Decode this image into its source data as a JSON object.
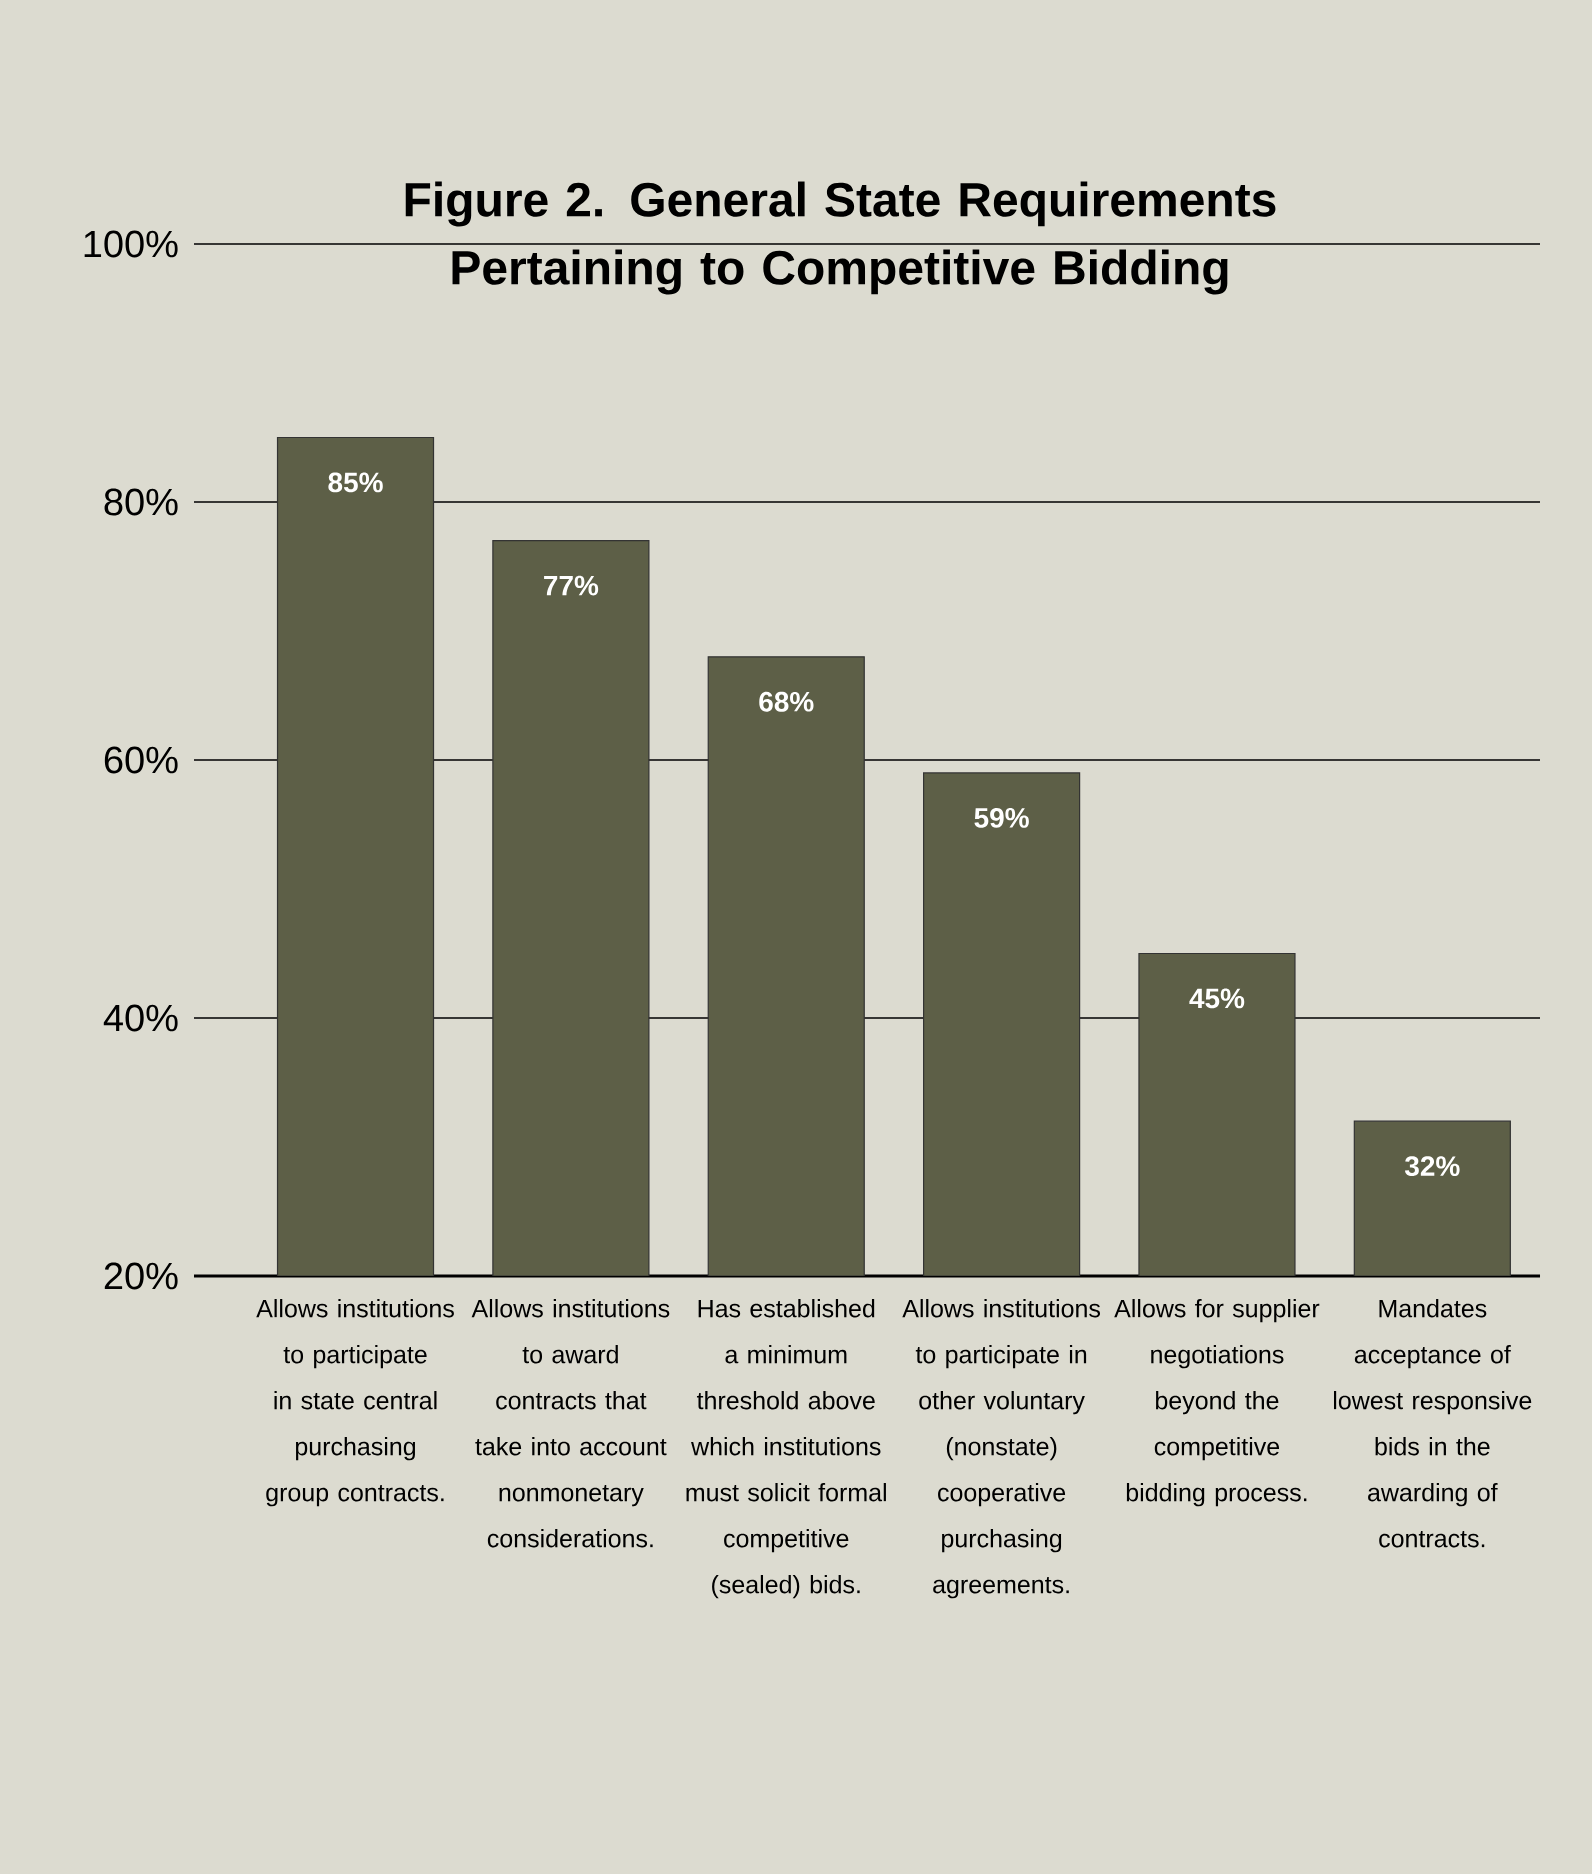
{
  "chart_data": {
    "type": "bar",
    "title": "Figure 2. General State Requirements Pertaining to Competitive Bidding",
    "categories": [
      "Allows institutions to participate in state central purchasing group contracts.",
      "Allows institutions to award contracts that take into account nonmonetary considerations.",
      "Has established a minimum threshold above which institutions must solicit formal competitive (sealed) bids.",
      "Allows institutions to participate in other voluntary (nonstate) cooperative purchasing agreements.",
      "Allows for supplier negotiations beyond the competitive bidding process.",
      "Mandates acceptance of lowest responsive bids in the awarding of contracts."
    ],
    "values": [
      85,
      77,
      68,
      59,
      45,
      32
    ],
    "value_labels": [
      "85%",
      "77%",
      "68%",
      "59%",
      "45%",
      "32%"
    ],
    "color": "#5d5f47",
    "ylim": [
      20,
      100
    ],
    "yticks": [
      {
        "value": 20,
        "label": "20%"
      },
      {
        "value": 40,
        "label": "40%"
      },
      {
        "value": 60,
        "label": "60%"
      },
      {
        "value": 80,
        "label": "80%"
      },
      {
        "value": 100,
        "label": "100%"
      }
    ],
    "grid": "y"
  }
}
